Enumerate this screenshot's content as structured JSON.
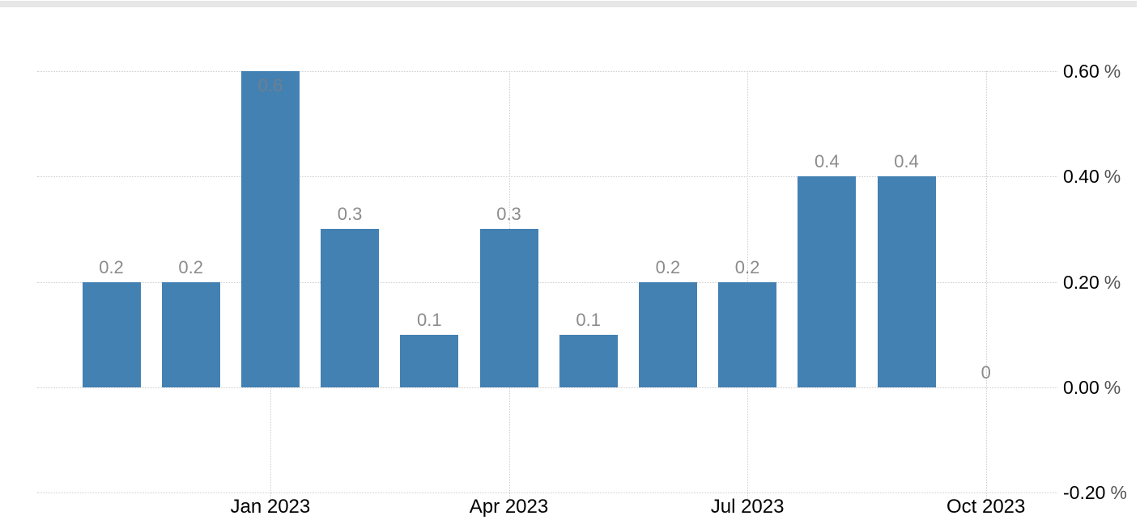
{
  "chart_data": {
    "type": "bar",
    "title": "",
    "legend": "none",
    "grid": true,
    "background_color": "#ffffff",
    "top_strip_color": "#e7e7e7",
    "bar_color": "#4481b3",
    "data_label_color": "#8c8c8c",
    "inside_data_label_color": "#6e7f8e",
    "axis_label_color": "#000000",
    "unit_label_color": "#555555",
    "grid_color": "#cfcfcf",
    "values": [
      0.2,
      0.2,
      0.6,
      0.3,
      0.1,
      0.3,
      0.1,
      0.2,
      0.2,
      0.4,
      0.4,
      0
    ],
    "data_labels": [
      "0.2",
      "0.2",
      "0.6",
      "0.3",
      "0.1",
      "0.3",
      "0.1",
      "0.2",
      "0.2",
      "0.4",
      "0.4",
      "0"
    ],
    "x_ticks": [
      {
        "index": 2,
        "label": "Jan 2023"
      },
      {
        "index": 5,
        "label": "Apr 2023"
      },
      {
        "index": 8,
        "label": "Jul 2023"
      },
      {
        "index": 11,
        "label": "Oct 2023"
      }
    ],
    "y_ticks": [
      {
        "value": 0.6,
        "num": "0.60",
        "unit": "%"
      },
      {
        "value": 0.4,
        "num": "0.40",
        "unit": "%"
      },
      {
        "value": 0.2,
        "num": "0.20",
        "unit": "%"
      },
      {
        "value": 0.0,
        "num": "0.00",
        "unit": "%"
      },
      {
        "value": -0.2,
        "num": "-0.20",
        "unit": "%"
      }
    ],
    "ylim": [
      -0.2,
      0.6
    ]
  }
}
